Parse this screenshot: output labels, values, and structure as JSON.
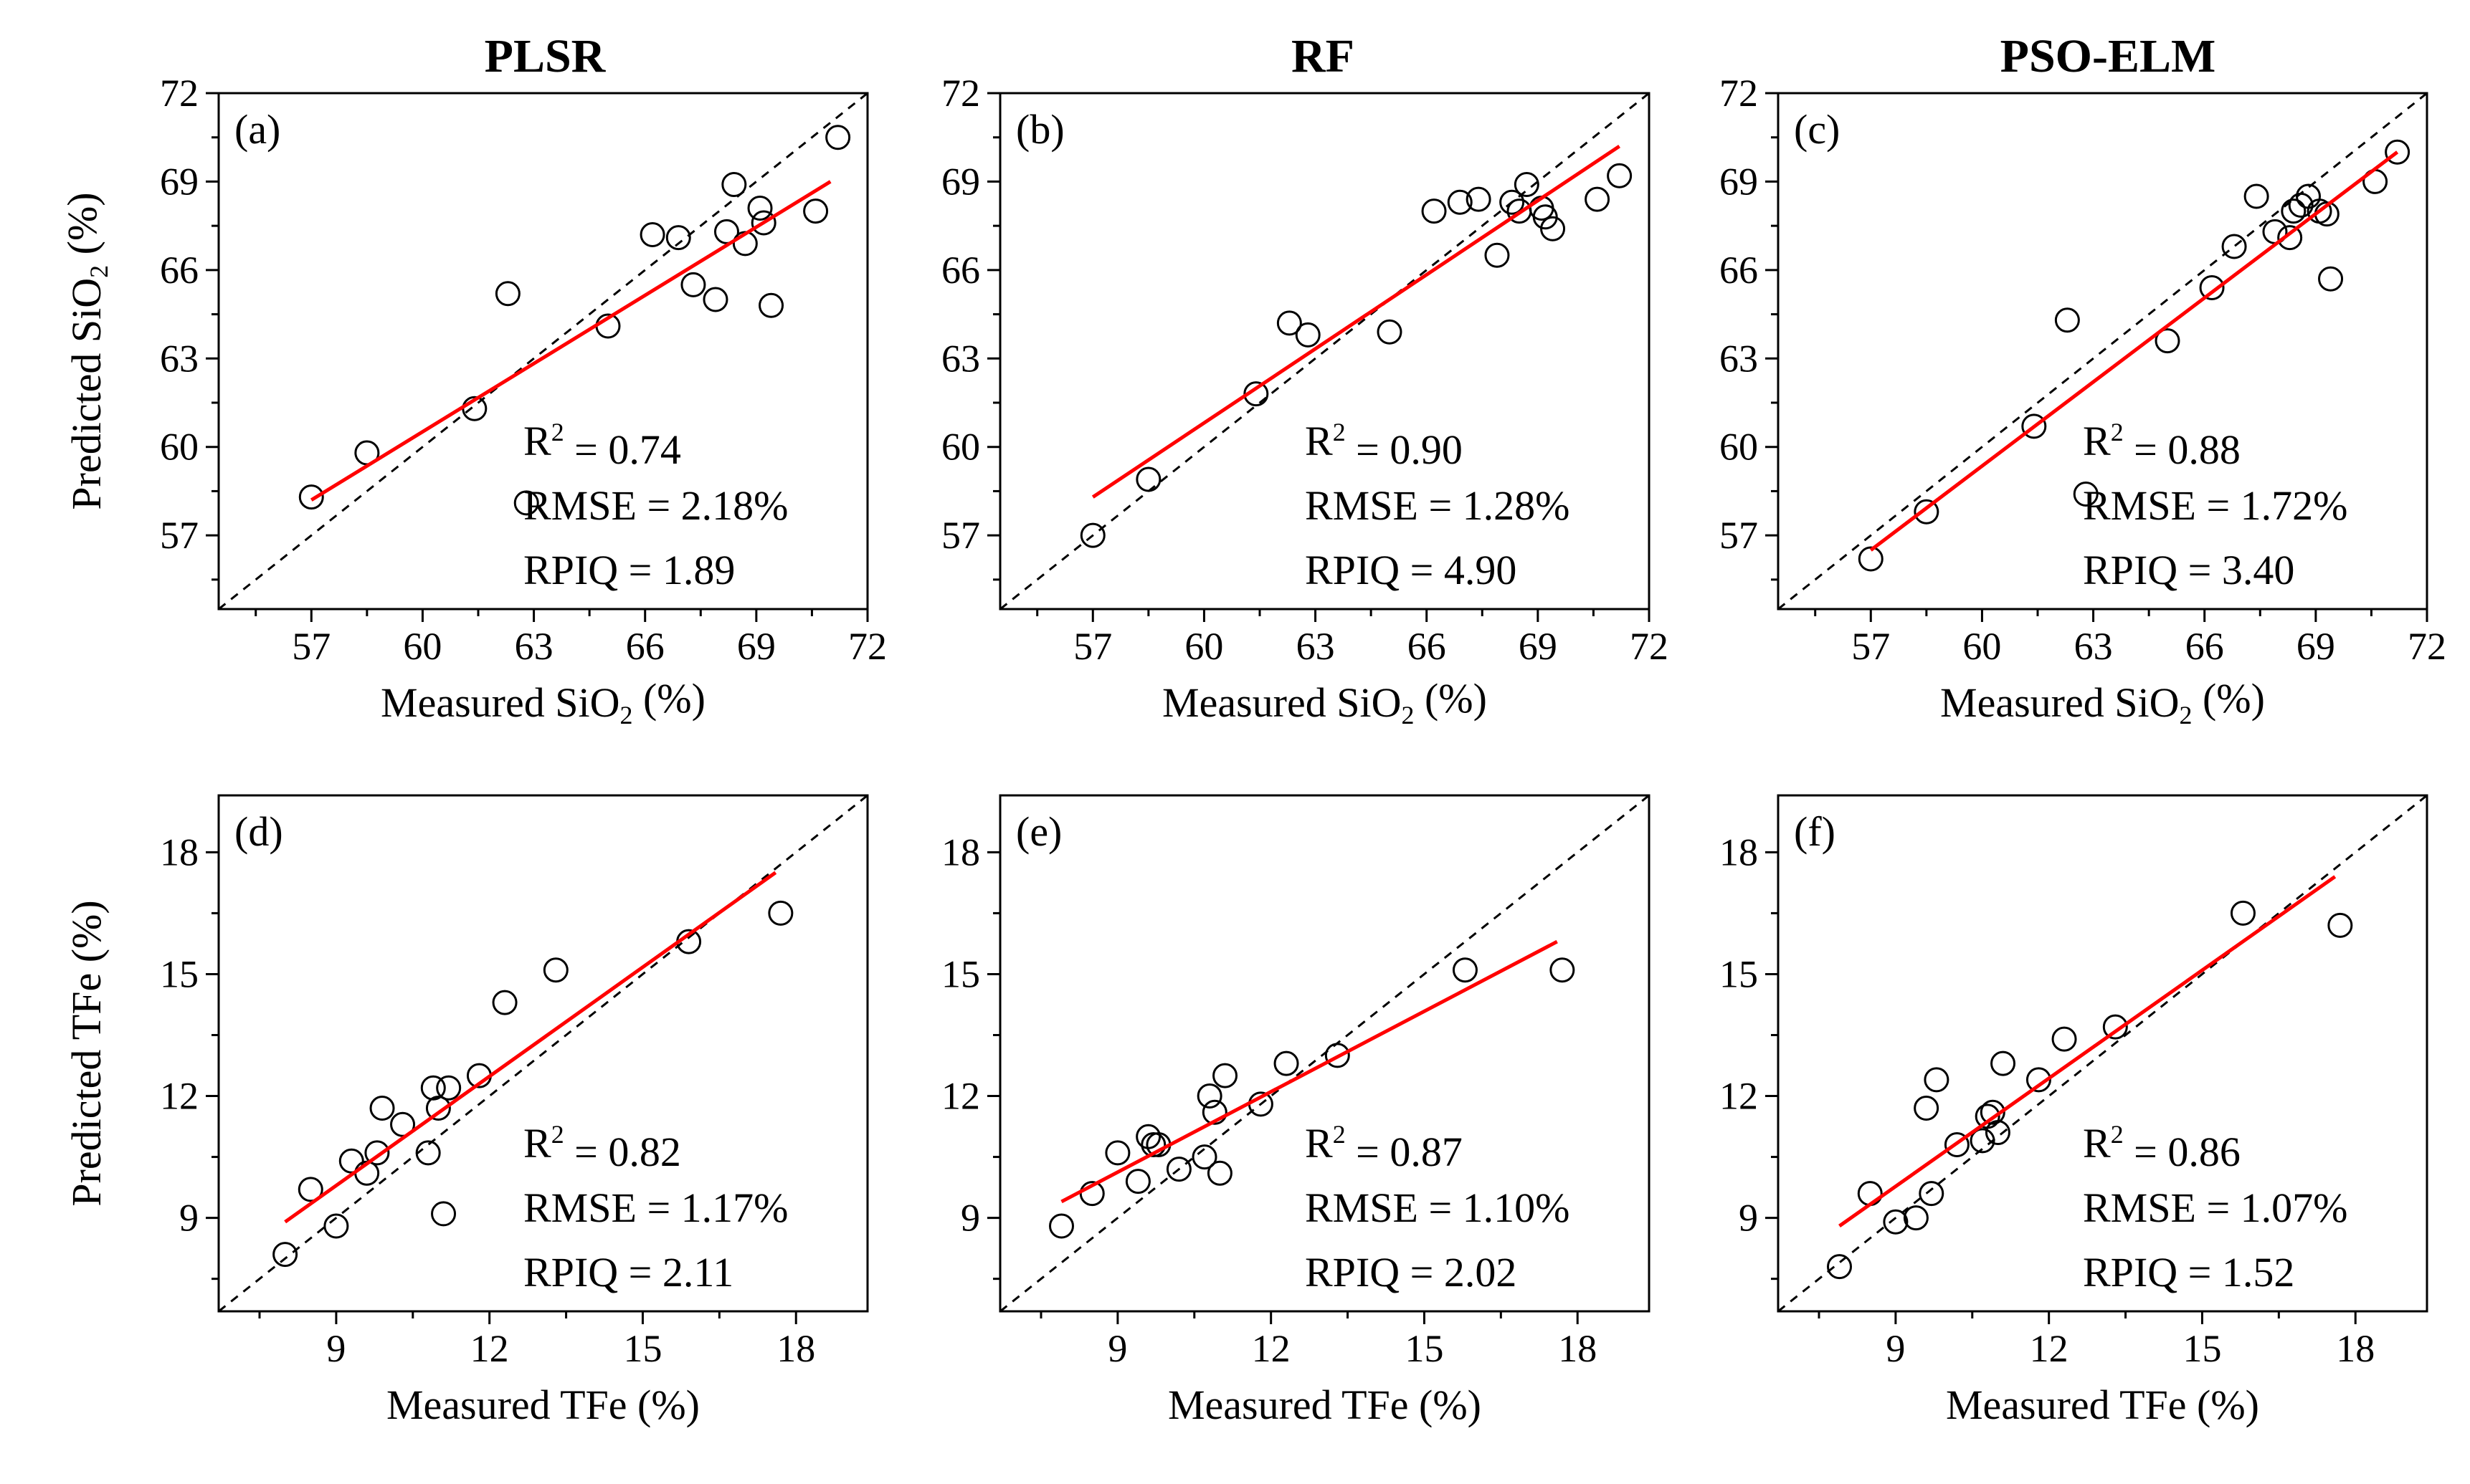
{
  "column_titles": [
    "PLSR",
    "RF",
    "PSO-ELM"
  ],
  "rows": [
    {
      "x_label": "Measured SiO₂ (%)",
      "y_label": "Predicted SiO₂ (%)",
      "ticks": [
        57,
        60,
        63,
        66,
        69,
        72
      ],
      "range": [
        54.5,
        72
      ]
    },
    {
      "x_label": "Measured TFe (%)",
      "y_label": "Predicted TFe (%)",
      "ticks": [
        9,
        12,
        15,
        18
      ],
      "range": [
        6.7,
        19.4
      ]
    }
  ],
  "styles": {
    "marker_color": "#000000",
    "fit_line_color": "#ff0000",
    "reference_line_color": "#000000"
  },
  "chart_data": [
    {
      "type": "scatter",
      "title": "PLSR",
      "panel_label": "(a)",
      "xlabel": "Measured SiO₂ (%)",
      "ylabel": "Predicted SiO₂ (%)",
      "xlim": [
        54.5,
        72
      ],
      "ylim": [
        54.5,
        72
      ],
      "points": [
        [
          57.0,
          58.3
        ],
        [
          58.5,
          59.8
        ],
        [
          61.4,
          61.3
        ],
        [
          62.3,
          65.2
        ],
        [
          62.8,
          58.1
        ],
        [
          65.0,
          64.1
        ],
        [
          66.2,
          67.2
        ],
        [
          66.9,
          67.1
        ],
        [
          67.3,
          65.5
        ],
        [
          67.9,
          65.0
        ],
        [
          68.2,
          67.3
        ],
        [
          68.4,
          68.9
        ],
        [
          68.7,
          66.9
        ],
        [
          69.1,
          68.1
        ],
        [
          69.2,
          67.6
        ],
        [
          69.4,
          64.8
        ],
        [
          70.6,
          68.0
        ],
        [
          71.2,
          70.5
        ]
      ],
      "fit_line": [
        [
          57.0,
          58.2
        ],
        [
          71.0,
          69.0
        ]
      ],
      "stats": [
        "R² = 0.74",
        "RMSE = 2.18%",
        "RPIQ = 1.89"
      ]
    },
    {
      "type": "scatter",
      "title": "RF",
      "panel_label": "(b)",
      "xlabel": "Measured SiO₂ (%)",
      "ylabel": "",
      "xlim": [
        54.5,
        72
      ],
      "ylim": [
        54.5,
        72
      ],
      "points": [
        [
          57.0,
          57.0
        ],
        [
          58.5,
          58.9
        ],
        [
          61.4,
          61.8
        ],
        [
          62.3,
          64.2
        ],
        [
          62.8,
          63.8
        ],
        [
          65.0,
          63.9
        ],
        [
          66.2,
          68.0
        ],
        [
          66.9,
          68.3
        ],
        [
          67.4,
          68.4
        ],
        [
          67.9,
          66.5
        ],
        [
          68.3,
          68.3
        ],
        [
          68.5,
          68.0
        ],
        [
          68.7,
          68.9
        ],
        [
          69.1,
          68.1
        ],
        [
          69.2,
          67.8
        ],
        [
          69.4,
          67.4
        ],
        [
          70.6,
          68.4
        ],
        [
          71.2,
          69.2
        ]
      ],
      "fit_line": [
        [
          57.0,
          58.3
        ],
        [
          71.2,
          70.2
        ]
      ],
      "stats": [
        "R² = 0.90",
        "RMSE = 1.28%",
        "RPIQ = 4.90"
      ]
    },
    {
      "type": "scatter",
      "title": "PSO-ELM",
      "panel_label": "(c)",
      "xlabel": "Measured SiO₂ (%)",
      "ylabel": "",
      "xlim": [
        54.5,
        72
      ],
      "ylim": [
        54.5,
        72
      ],
      "points": [
        [
          57.0,
          56.2
        ],
        [
          58.5,
          57.8
        ],
        [
          61.4,
          60.7
        ],
        [
          62.3,
          64.3
        ],
        [
          62.8,
          58.4
        ],
        [
          65.0,
          63.6
        ],
        [
          66.2,
          65.4
        ],
        [
          66.8,
          66.8
        ],
        [
          67.4,
          68.5
        ],
        [
          67.9,
          67.3
        ],
        [
          68.3,
          67.1
        ],
        [
          68.4,
          68.0
        ],
        [
          68.6,
          68.2
        ],
        [
          68.8,
          68.5
        ],
        [
          69.1,
          68.0
        ],
        [
          69.3,
          67.9
        ],
        [
          69.4,
          65.7
        ],
        [
          70.6,
          69.0
        ],
        [
          71.2,
          70.0
        ]
      ],
      "fit_line": [
        [
          57.0,
          56.5
        ],
        [
          71.2,
          70.0
        ]
      ],
      "stats": [
        "R² = 0.88",
        "RMSE = 1.72%",
        "RPIQ = 3.40"
      ]
    },
    {
      "type": "scatter",
      "title": "",
      "panel_label": "(d)",
      "xlabel": "Measured TFe (%)",
      "ylabel": "Predicted TFe (%)",
      "xlim": [
        6.7,
        19.4
      ],
      "ylim": [
        6.7,
        19.4
      ],
      "points": [
        [
          8.0,
          8.1
        ],
        [
          8.5,
          9.7
        ],
        [
          9.0,
          8.8
        ],
        [
          9.3,
          10.4
        ],
        [
          9.6,
          10.1
        ],
        [
          9.8,
          10.6
        ],
        [
          9.9,
          11.7
        ],
        [
          10.3,
          11.3
        ],
        [
          10.8,
          10.6
        ],
        [
          10.9,
          12.2
        ],
        [
          11.0,
          11.7
        ],
        [
          11.1,
          9.1
        ],
        [
          11.2,
          12.2
        ],
        [
          11.8,
          12.5
        ],
        [
          12.3,
          14.3
        ],
        [
          13.3,
          15.1
        ],
        [
          15.9,
          15.8
        ],
        [
          17.7,
          16.5
        ]
      ],
      "fit_line": [
        [
          8.0,
          8.9
        ],
        [
          17.6,
          17.5
        ]
      ],
      "stats": [
        "R² = 0.82",
        "RMSE = 1.17%",
        "RPIQ = 2.11"
      ]
    },
    {
      "type": "scatter",
      "title": "",
      "panel_label": "(e)",
      "xlabel": "Measured TFe (%)",
      "ylabel": "",
      "xlim": [
        6.7,
        19.4
      ],
      "ylim": [
        6.7,
        19.4
      ],
      "points": [
        [
          7.9,
          8.8
        ],
        [
          8.5,
          9.6
        ],
        [
          9.0,
          10.6
        ],
        [
          9.4,
          9.9
        ],
        [
          9.6,
          11.0
        ],
        [
          9.7,
          10.8
        ],
        [
          9.8,
          10.8
        ],
        [
          10.2,
          10.2
        ],
        [
          10.7,
          10.5
        ],
        [
          10.8,
          12.0
        ],
        [
          10.9,
          11.6
        ],
        [
          11.0,
          10.1
        ],
        [
          11.1,
          12.5
        ],
        [
          11.8,
          11.8
        ],
        [
          12.3,
          12.8
        ],
        [
          13.3,
          13.0
        ],
        [
          15.8,
          15.1
        ],
        [
          17.7,
          15.1
        ]
      ],
      "fit_line": [
        [
          7.9,
          9.4
        ],
        [
          17.6,
          15.8
        ]
      ],
      "stats": [
        "R² = 0.87",
        "RMSE = 1.10%",
        "RPIQ = 2.02"
      ]
    },
    {
      "type": "scatter",
      "title": "",
      "panel_label": "(f)",
      "xlabel": "Measured TFe (%)",
      "ylabel": "",
      "xlim": [
        6.7,
        19.4
      ],
      "ylim": [
        6.7,
        19.4
      ],
      "points": [
        [
          7.9,
          7.8
        ],
        [
          8.5,
          9.6
        ],
        [
          9.0,
          8.9
        ],
        [
          9.4,
          9.0
        ],
        [
          9.6,
          11.7
        ],
        [
          9.7,
          9.6
        ],
        [
          9.8,
          12.4
        ],
        [
          10.2,
          10.8
        ],
        [
          10.7,
          10.9
        ],
        [
          10.8,
          11.5
        ],
        [
          10.9,
          11.6
        ],
        [
          11.0,
          11.1
        ],
        [
          11.1,
          12.8
        ],
        [
          11.8,
          12.4
        ],
        [
          12.3,
          13.4
        ],
        [
          13.3,
          13.7
        ],
        [
          15.8,
          16.5
        ],
        [
          17.7,
          16.2
        ]
      ],
      "fit_line": [
        [
          7.9,
          8.8
        ],
        [
          17.6,
          17.4
        ]
      ],
      "stats": [
        "R² = 0.86",
        "RMSE = 1.07%",
        "RPIQ = 1.52"
      ]
    }
  ]
}
